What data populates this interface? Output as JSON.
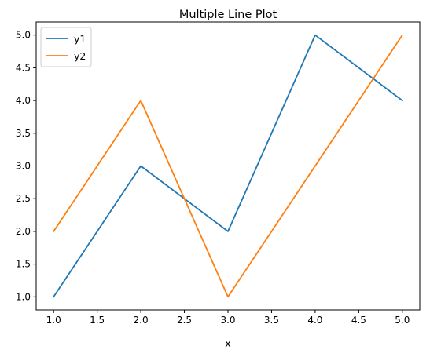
{
  "chart_data": {
    "type": "line",
    "title": "Multiple Line Plot",
    "xlabel": "x",
    "ylabel": "",
    "x": [
      1,
      2,
      3,
      4,
      5
    ],
    "series": [
      {
        "name": "y1",
        "values": [
          1,
          3,
          2,
          5,
          4
        ],
        "color": "#1f77b4"
      },
      {
        "name": "y2",
        "values": [
          2,
          4,
          1,
          3,
          5
        ],
        "color": "#ff7f0e"
      }
    ],
    "xticks": [
      "1.0",
      "1.5",
      "2.0",
      "2.5",
      "3.0",
      "3.5",
      "4.0",
      "4.5",
      "5.0"
    ],
    "yticks": [
      "1.0",
      "1.5",
      "2.0",
      "2.5",
      "3.0",
      "3.5",
      "4.0",
      "4.5",
      "5.0"
    ],
    "xlim": [
      0.8,
      5.2
    ],
    "ylim": [
      0.8,
      5.2
    ],
    "grid": false,
    "legend_position": "top-left"
  }
}
